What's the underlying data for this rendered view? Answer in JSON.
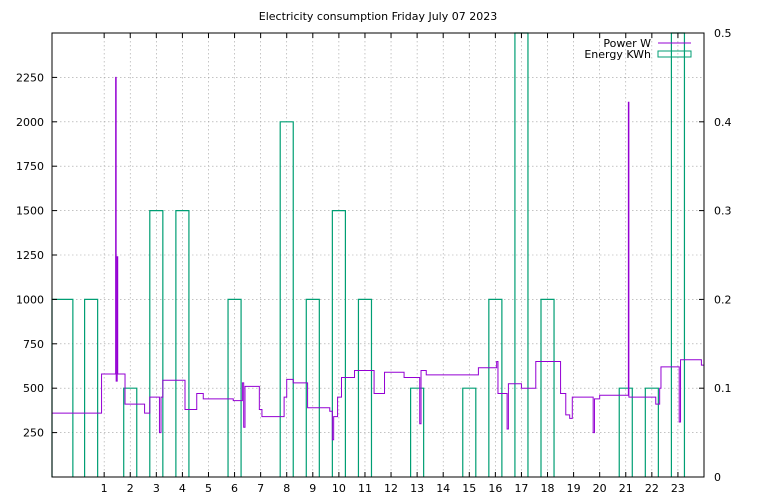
{
  "chart_data": {
    "type": "line",
    "title": "Electricity consumption Friday July 07 2023",
    "xlabel": "",
    "ylabel": "",
    "xlim": [
      -1,
      24
    ],
    "ylim": [
      0,
      2500
    ],
    "y2lim": [
      0,
      0.5
    ],
    "x_ticks": [
      1,
      2,
      3,
      4,
      5,
      6,
      7,
      8,
      9,
      10,
      11,
      12,
      13,
      14,
      15,
      16,
      17,
      18,
      19,
      20,
      21,
      22,
      23
    ],
    "y_ticks": [
      250,
      500,
      750,
      1000,
      1250,
      1500,
      1750,
      2000,
      2250
    ],
    "y2_ticks": [
      0,
      0.1,
      0.2,
      0.3,
      0.4,
      0.5
    ],
    "grid": true,
    "legend_position": "top-right",
    "colors": {
      "power": "#9400d3",
      "energy": "#009e73"
    },
    "series": [
      {
        "name": "Power W",
        "axis": "left",
        "style": "steps",
        "points": [
          [
            -1.0,
            360
          ],
          [
            0.9,
            580
          ],
          [
            1.4,
            580
          ],
          [
            1.44,
            2250
          ],
          [
            1.46,
            540
          ],
          [
            1.5,
            1240
          ],
          [
            1.52,
            580
          ],
          [
            1.75,
            580
          ],
          [
            1.8,
            410
          ],
          [
            2.3,
            410
          ],
          [
            2.55,
            360
          ],
          [
            2.75,
            450
          ],
          [
            3.05,
            450
          ],
          [
            3.12,
            250
          ],
          [
            3.18,
            450
          ],
          [
            3.25,
            545
          ],
          [
            4.05,
            545
          ],
          [
            4.1,
            380
          ],
          [
            4.5,
            380
          ],
          [
            4.55,
            470
          ],
          [
            4.8,
            440
          ],
          [
            5.9,
            440
          ],
          [
            5.95,
            430
          ],
          [
            6.25,
            430
          ],
          [
            6.3,
            530
          ],
          [
            6.35,
            280
          ],
          [
            6.4,
            510
          ],
          [
            6.55,
            510
          ],
          [
            6.9,
            510
          ],
          [
            6.95,
            380
          ],
          [
            7.05,
            340
          ],
          [
            7.85,
            340
          ],
          [
            7.9,
            450
          ],
          [
            8.0,
            550
          ],
          [
            8.25,
            530
          ],
          [
            8.75,
            530
          ],
          [
            8.8,
            390
          ],
          [
            9.5,
            390
          ],
          [
            9.65,
            370
          ],
          [
            9.75,
            210
          ],
          [
            9.8,
            340
          ],
          [
            9.95,
            450
          ],
          [
            10.1,
            560
          ],
          [
            10.55,
            560
          ],
          [
            10.6,
            600
          ],
          [
            11.3,
            600
          ],
          [
            11.35,
            470
          ],
          [
            11.7,
            470
          ],
          [
            11.75,
            590
          ],
          [
            12.45,
            590
          ],
          [
            12.5,
            560
          ],
          [
            13.05,
            560
          ],
          [
            13.1,
            300
          ],
          [
            13.15,
            600
          ],
          [
            13.3,
            600
          ],
          [
            13.35,
            575
          ],
          [
            15.3,
            575
          ],
          [
            15.35,
            615
          ],
          [
            16.0,
            615
          ],
          [
            16.05,
            650
          ],
          [
            16.1,
            470
          ],
          [
            16.4,
            470
          ],
          [
            16.45,
            270
          ],
          [
            16.5,
            525
          ],
          [
            16.95,
            525
          ],
          [
            17.0,
            500
          ],
          [
            17.5,
            500
          ],
          [
            17.55,
            650
          ],
          [
            18.45,
            650
          ],
          [
            18.5,
            470
          ],
          [
            18.65,
            470
          ],
          [
            18.7,
            350
          ],
          [
            18.85,
            330
          ],
          [
            18.9,
            330
          ],
          [
            18.95,
            450
          ],
          [
            19.7,
            450
          ],
          [
            19.75,
            250
          ],
          [
            19.8,
            440
          ],
          [
            19.95,
            440
          ],
          [
            20.0,
            460
          ],
          [
            21.05,
            460
          ],
          [
            21.1,
            2110
          ],
          [
            21.12,
            450
          ],
          [
            21.2,
            450
          ],
          [
            22.1,
            450
          ],
          [
            22.15,
            410
          ],
          [
            22.3,
            500
          ],
          [
            22.35,
            620
          ],
          [
            23.0,
            620
          ],
          [
            23.05,
            310
          ],
          [
            23.1,
            660
          ],
          [
            23.6,
            660
          ],
          [
            23.85,
            660
          ],
          [
            23.9,
            630
          ],
          [
            24.0,
            630
          ]
        ]
      },
      {
        "name": "Energy KWh",
        "axis": "right",
        "style": "hist",
        "bins": [
          {
            "start": -1.0,
            "end": -0.2,
            "value": 0.2
          },
          {
            "start": 0.25,
            "end": 0.75,
            "value": 0.2
          },
          {
            "start": 1.75,
            "end": 2.25,
            "value": 0.1
          },
          {
            "start": 2.75,
            "end": 3.25,
            "value": 0.3
          },
          {
            "start": 3.75,
            "end": 4.25,
            "value": 0.3
          },
          {
            "start": 5.75,
            "end": 6.25,
            "value": 0.2
          },
          {
            "start": 7.75,
            "end": 8.25,
            "value": 0.4
          },
          {
            "start": 8.75,
            "end": 9.25,
            "value": 0.2
          },
          {
            "start": 9.75,
            "end": 10.25,
            "value": 0.3
          },
          {
            "start": 10.75,
            "end": 11.25,
            "value": 0.2
          },
          {
            "start": 12.75,
            "end": 13.25,
            "value": 0.1
          },
          {
            "start": 14.75,
            "end": 15.25,
            "value": 0.1
          },
          {
            "start": 15.75,
            "end": 16.25,
            "value": 0.2
          },
          {
            "start": 16.75,
            "end": 17.25,
            "value": 0.5
          },
          {
            "start": 17.75,
            "end": 18.25,
            "value": 0.2
          },
          {
            "start": 20.75,
            "end": 21.25,
            "value": 0.1
          },
          {
            "start": 21.75,
            "end": 22.25,
            "value": 0.1
          },
          {
            "start": 22.75,
            "end": 23.25,
            "value": 0.5
          }
        ]
      }
    ]
  }
}
